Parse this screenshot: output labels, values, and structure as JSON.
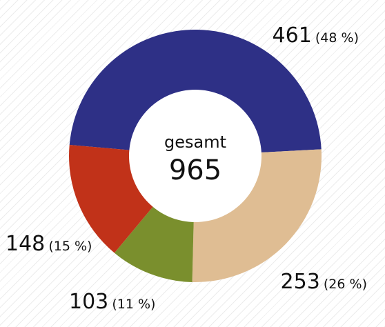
{
  "chart_data": {
    "type": "pie",
    "variant": "donut",
    "center_title": "gesamt",
    "center_value": "965",
    "slices": [
      {
        "value": 461,
        "value_label": "461",
        "percent_label": "(48 %)",
        "color": "#2e3086"
      },
      {
        "value": 253,
        "value_label": "253",
        "percent_label": "(26 %)",
        "color": "#dfbd93"
      },
      {
        "value": 103,
        "value_label": "103",
        "percent_label": "(11 %)",
        "color": "#7a8f2d"
      },
      {
        "value": 148,
        "value_label": "148",
        "percent_label": "(15 %)",
        "color": "#c13219"
      }
    ]
  }
}
